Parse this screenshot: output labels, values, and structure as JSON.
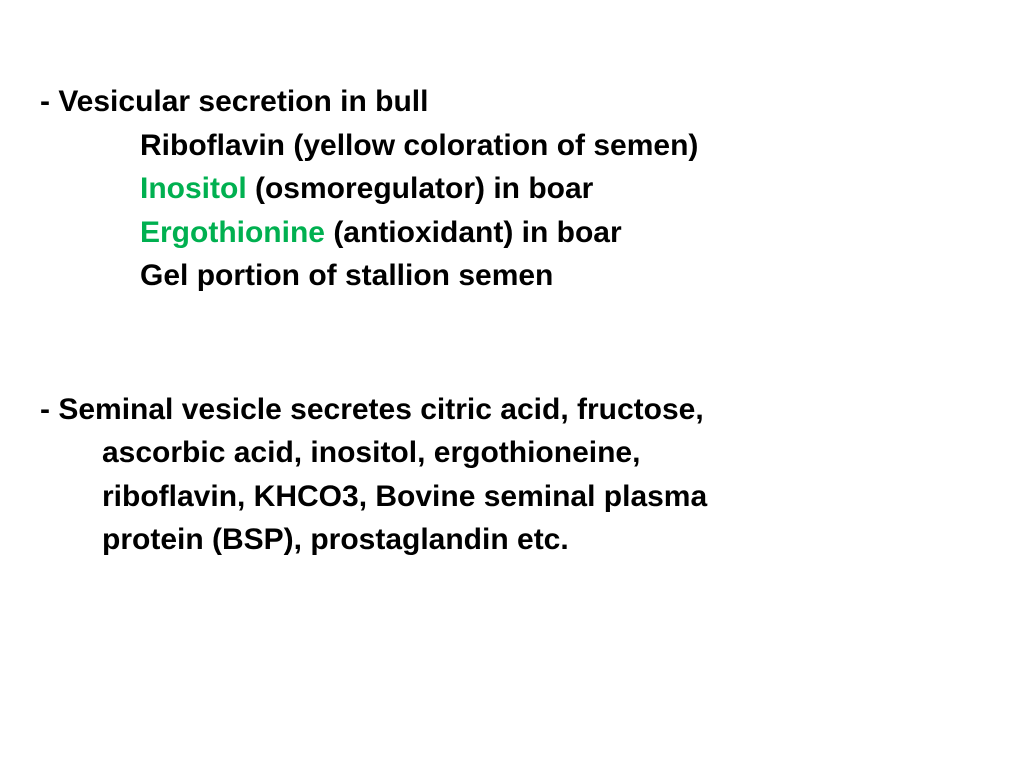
{
  "slide": {
    "background_color": "#ffffff",
    "text_color": "#000000",
    "highlight_color": "#00b050",
    "font_size": 30,
    "font_weight": "bold",
    "font_family": "Arial",
    "line_height": 1.45
  },
  "section1": {
    "bullet": "- Vesicular secretion in bull",
    "line1": "Riboflavin (yellow coloration of semen)",
    "line2_highlight": "Inositol",
    "line2_rest": " (osmoregulator) in boar",
    "line3_highlight": "Ergothionine",
    "line3_rest": " (antioxidant) in boar",
    "line4": "Gel portion of stallion semen"
  },
  "section2": {
    "bullet": "- Seminal vesicle secretes citric acid, fructose,",
    "line2": "ascorbic acid, inositol, ergothioneine,",
    "line3": "riboflavin, KHCO3, Bovine seminal plasma",
    "line4": "protein (BSP), prostaglandin etc."
  }
}
